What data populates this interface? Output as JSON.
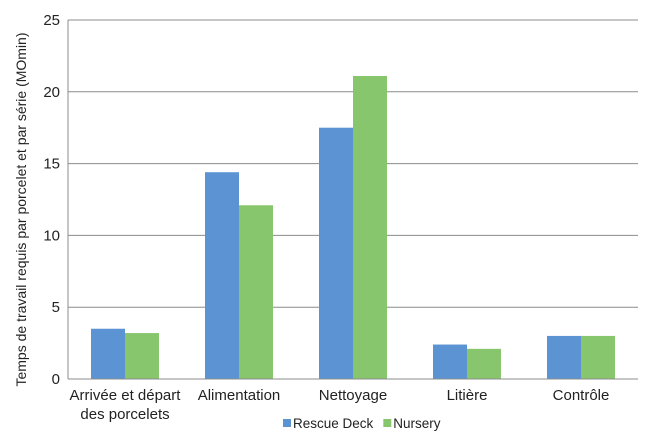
{
  "chart_data": {
    "type": "bar",
    "title": "",
    "xlabel": "",
    "ylabel": "Temps de travail requis par porcelet et par série (MOmin)",
    "ylim": [
      0,
      25
    ],
    "yticks": [
      0,
      5,
      10,
      15,
      20,
      25
    ],
    "grid": true,
    "legend_position": "bottom",
    "categories": [
      [
        "Arrivée et départ",
        "des porcelets"
      ],
      [
        "Alimentation"
      ],
      [
        "Nettoyage"
      ],
      [
        "Litière"
      ],
      [
        "Contrôle"
      ]
    ],
    "series": [
      {
        "name": "Rescue Deck",
        "color": "#5B93D3",
        "values": [
          3.5,
          14.4,
          17.5,
          2.4,
          3.0
        ]
      },
      {
        "name": "Nursery",
        "color": "#88C66E",
        "values": [
          3.2,
          12.1,
          21.1,
          2.1,
          3.0
        ]
      }
    ]
  }
}
